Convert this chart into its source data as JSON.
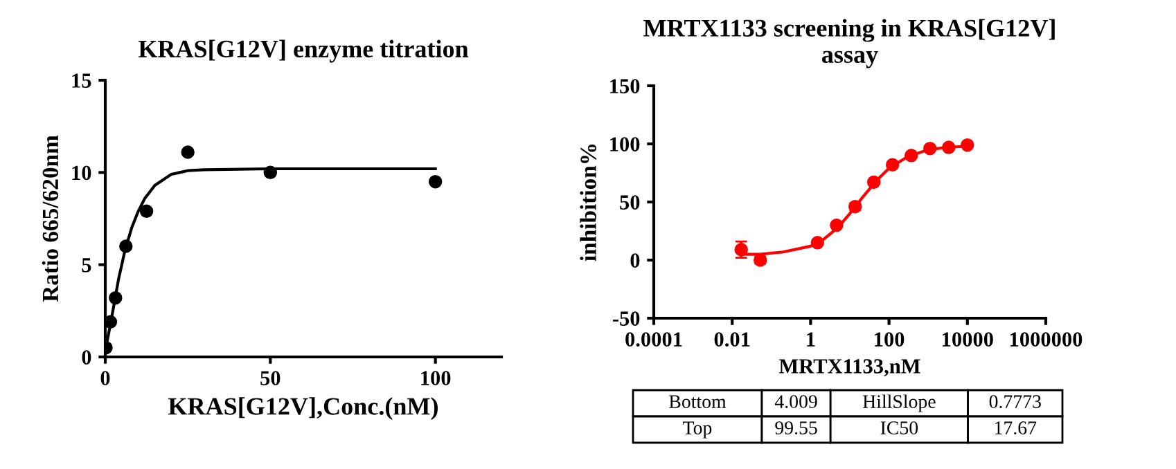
{
  "chart_data": [
    {
      "type": "scatter",
      "title": "KRAS[G12V] enzyme titration",
      "xlabel": "KRAS[G12V],Conc.(nM)",
      "ylabel": "Ratio 665/620nm",
      "xlim": [
        0,
        120
      ],
      "xticks": [
        0,
        50,
        100
      ],
      "ylim": [
        0,
        15
      ],
      "yticks": [
        0,
        5,
        10,
        15
      ],
      "series": [
        {
          "color": "#000000",
          "marker": "circle",
          "x": [
            0.2,
            1.56,
            3.1,
            6.25,
            12.5,
            25,
            50,
            100
          ],
          "values": [
            0.5,
            1.9,
            3.2,
            6.0,
            7.9,
            11.1,
            10.0,
            9.5
          ]
        },
        {
          "type": "line",
          "color": "#000000",
          "marker": "none",
          "x": [
            0,
            2,
            4,
            6,
            8,
            10,
            12,
            15,
            20,
            25,
            30,
            50,
            100
          ],
          "values": [
            0.3,
            2.2,
            4.2,
            5.8,
            7.0,
            7.9,
            8.6,
            9.3,
            9.9,
            10.1,
            10.15,
            10.2,
            10.2
          ]
        }
      ]
    },
    {
      "type": "scatter",
      "title": "MRTX1133 screening in KRAS[G12V]\nassay",
      "xlabel": "MRTX1133,nM",
      "ylabel": "inhibition%",
      "log": "x",
      "xlim": [
        0.0001,
        1000000
      ],
      "xticks": [
        0.0001,
        0.01,
        1,
        100,
        10000,
        1000000
      ],
      "ylim": [
        -50,
        150
      ],
      "yticks": [
        -50,
        0,
        50,
        100,
        150
      ],
      "annotations": [
        "Bottom",
        "4.009",
        "HillSlope",
        "0.7773",
        "Top",
        "99.55",
        "IC50",
        "17.67"
      ],
      "series": [
        {
          "color": "#ff0000",
          "marker": "circle",
          "x": [
            0.017,
            0.052,
            1.5,
            4.6,
            13.7,
            41,
            123,
            370,
            1111,
            3333,
            10000
          ],
          "values": [
            9,
            0,
            15,
            30,
            46,
            67,
            82,
            90,
            96,
            97,
            99
          ],
          "errors": [
            7,
            3,
            null,
            null,
            3,
            null,
            null,
            null,
            null,
            null,
            null
          ]
        },
        {
          "type": "line",
          "color": "#ff0000",
          "marker": "none",
          "x": [
            0.017,
            0.05,
            0.2,
            1,
            2,
            5,
            10,
            20,
            50,
            100,
            300,
            1000,
            3000,
            10000
          ],
          "values": [
            5,
            5,
            7,
            12,
            17,
            28,
            40,
            53,
            69,
            79,
            89,
            95,
            97,
            98
          ]
        }
      ]
    }
  ]
}
